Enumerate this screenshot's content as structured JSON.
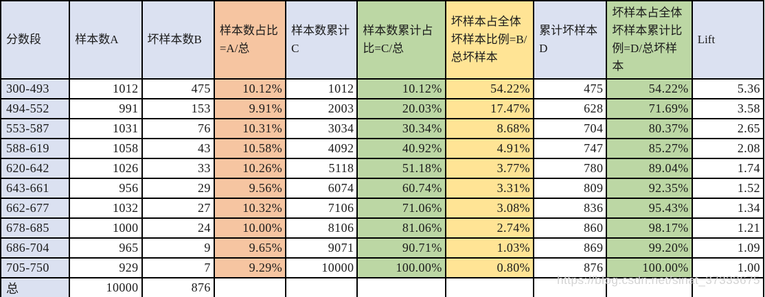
{
  "colors": {
    "blue": "#dbe1f1",
    "orange": "#f6c5a1",
    "green": "#bcd7a4",
    "yellow": "#ffe495",
    "white": "#ffffff",
    "border": "#000000",
    "text": "#1b1b1b",
    "watermark_gray": "#d3d3d3"
  },
  "page": {
    "watermark": "https://blog.csdn.net/sinat_37333675"
  },
  "table": {
    "columns": [
      {
        "key": "score-range",
        "label": "分数段",
        "header_bg": "blue",
        "cell_bg": "blue",
        "align": "left"
      },
      {
        "key": "sample-count-a",
        "label": "样本数A",
        "header_bg": "blue",
        "cell_bg": "white",
        "align": "right"
      },
      {
        "key": "bad-sample-count-b",
        "label": "坏样本数B",
        "header_bg": "blue",
        "cell_bg": "white",
        "align": "right"
      },
      {
        "key": "sample-pct",
        "label": "样本数占比=A/总",
        "header_bg": "orange",
        "cell_bg": "orange",
        "align": "right"
      },
      {
        "key": "cum-sample-c",
        "label": "样本数累计C",
        "header_bg": "blue",
        "cell_bg": "white",
        "align": "right"
      },
      {
        "key": "cum-sample-pct",
        "label": "样本数累计占比=C/总",
        "header_bg": "green",
        "cell_bg": "green",
        "align": "right"
      },
      {
        "key": "bad-sample-pct",
        "label": "坏样本占全体坏样本比例=B/总坏样本",
        "header_bg": "yellow",
        "cell_bg": "yellow",
        "align": "right"
      },
      {
        "key": "cum-bad-d",
        "label": "累计坏样本D",
        "header_bg": "blue",
        "cell_bg": "white",
        "align": "right"
      },
      {
        "key": "cum-bad-pct",
        "label": "坏样本占全体坏样本累计比例=D/总坏样本",
        "header_bg": "green",
        "cell_bg": "green",
        "align": "right"
      },
      {
        "key": "lift",
        "label": "Lift",
        "header_bg": "blue",
        "cell_bg": "white",
        "align": "right"
      }
    ]
  },
  "chart_data": {
    "type": "table",
    "title": "",
    "columns": [
      "分数段",
      "样本数A",
      "坏样本数B",
      "样本数占比=A/总",
      "样本数累计C",
      "样本数累计占比=C/总",
      "坏样本占全体坏样本比例=B/总坏样本",
      "累计坏样本D",
      "坏样本占全体坏样本累计比例=D/总坏样本",
      "Lift"
    ],
    "rows": [
      [
        "300-493",
        "1012",
        "475",
        "10.12%",
        "1012",
        "10.12%",
        "54.22%",
        "475",
        "54.22%",
        "5.36"
      ],
      [
        "494-552",
        "991",
        "153",
        "9.91%",
        "2003",
        "20.03%",
        "17.47%",
        "628",
        "71.69%",
        "3.58"
      ],
      [
        "553-587",
        "1031",
        "76",
        "10.31%",
        "3034",
        "30.34%",
        "8.68%",
        "704",
        "80.37%",
        "2.65"
      ],
      [
        "588-619",
        "1058",
        "43",
        "10.58%",
        "4092",
        "40.92%",
        "4.91%",
        "747",
        "85.27%",
        "2.08"
      ],
      [
        "620-642",
        "1026",
        "33",
        "10.26%",
        "5118",
        "51.18%",
        "3.77%",
        "780",
        "89.04%",
        "1.74"
      ],
      [
        "643-661",
        "956",
        "29",
        "9.56%",
        "6074",
        "60.74%",
        "3.31%",
        "809",
        "92.35%",
        "1.52"
      ],
      [
        "662-677",
        "1032",
        "27",
        "10.32%",
        "7106",
        "71.06%",
        "3.08%",
        "836",
        "95.43%",
        "1.34"
      ],
      [
        "678-685",
        "1000",
        "24",
        "10.00%",
        "8106",
        "81.06%",
        "2.74%",
        "860",
        "98.17%",
        "1.21"
      ],
      [
        "686-704",
        "965",
        "9",
        "9.65%",
        "9071",
        "90.71%",
        "1.03%",
        "869",
        "99.20%",
        "1.09"
      ],
      [
        "705-750",
        "929",
        "7",
        "9.29%",
        "10000",
        "100.00%",
        "0.80%",
        "876",
        "100.00%",
        "1.00"
      ]
    ],
    "total_row": [
      "总",
      "10000",
      "876",
      "",
      "",
      "",
      "",
      "",
      "",
      ""
    ]
  }
}
